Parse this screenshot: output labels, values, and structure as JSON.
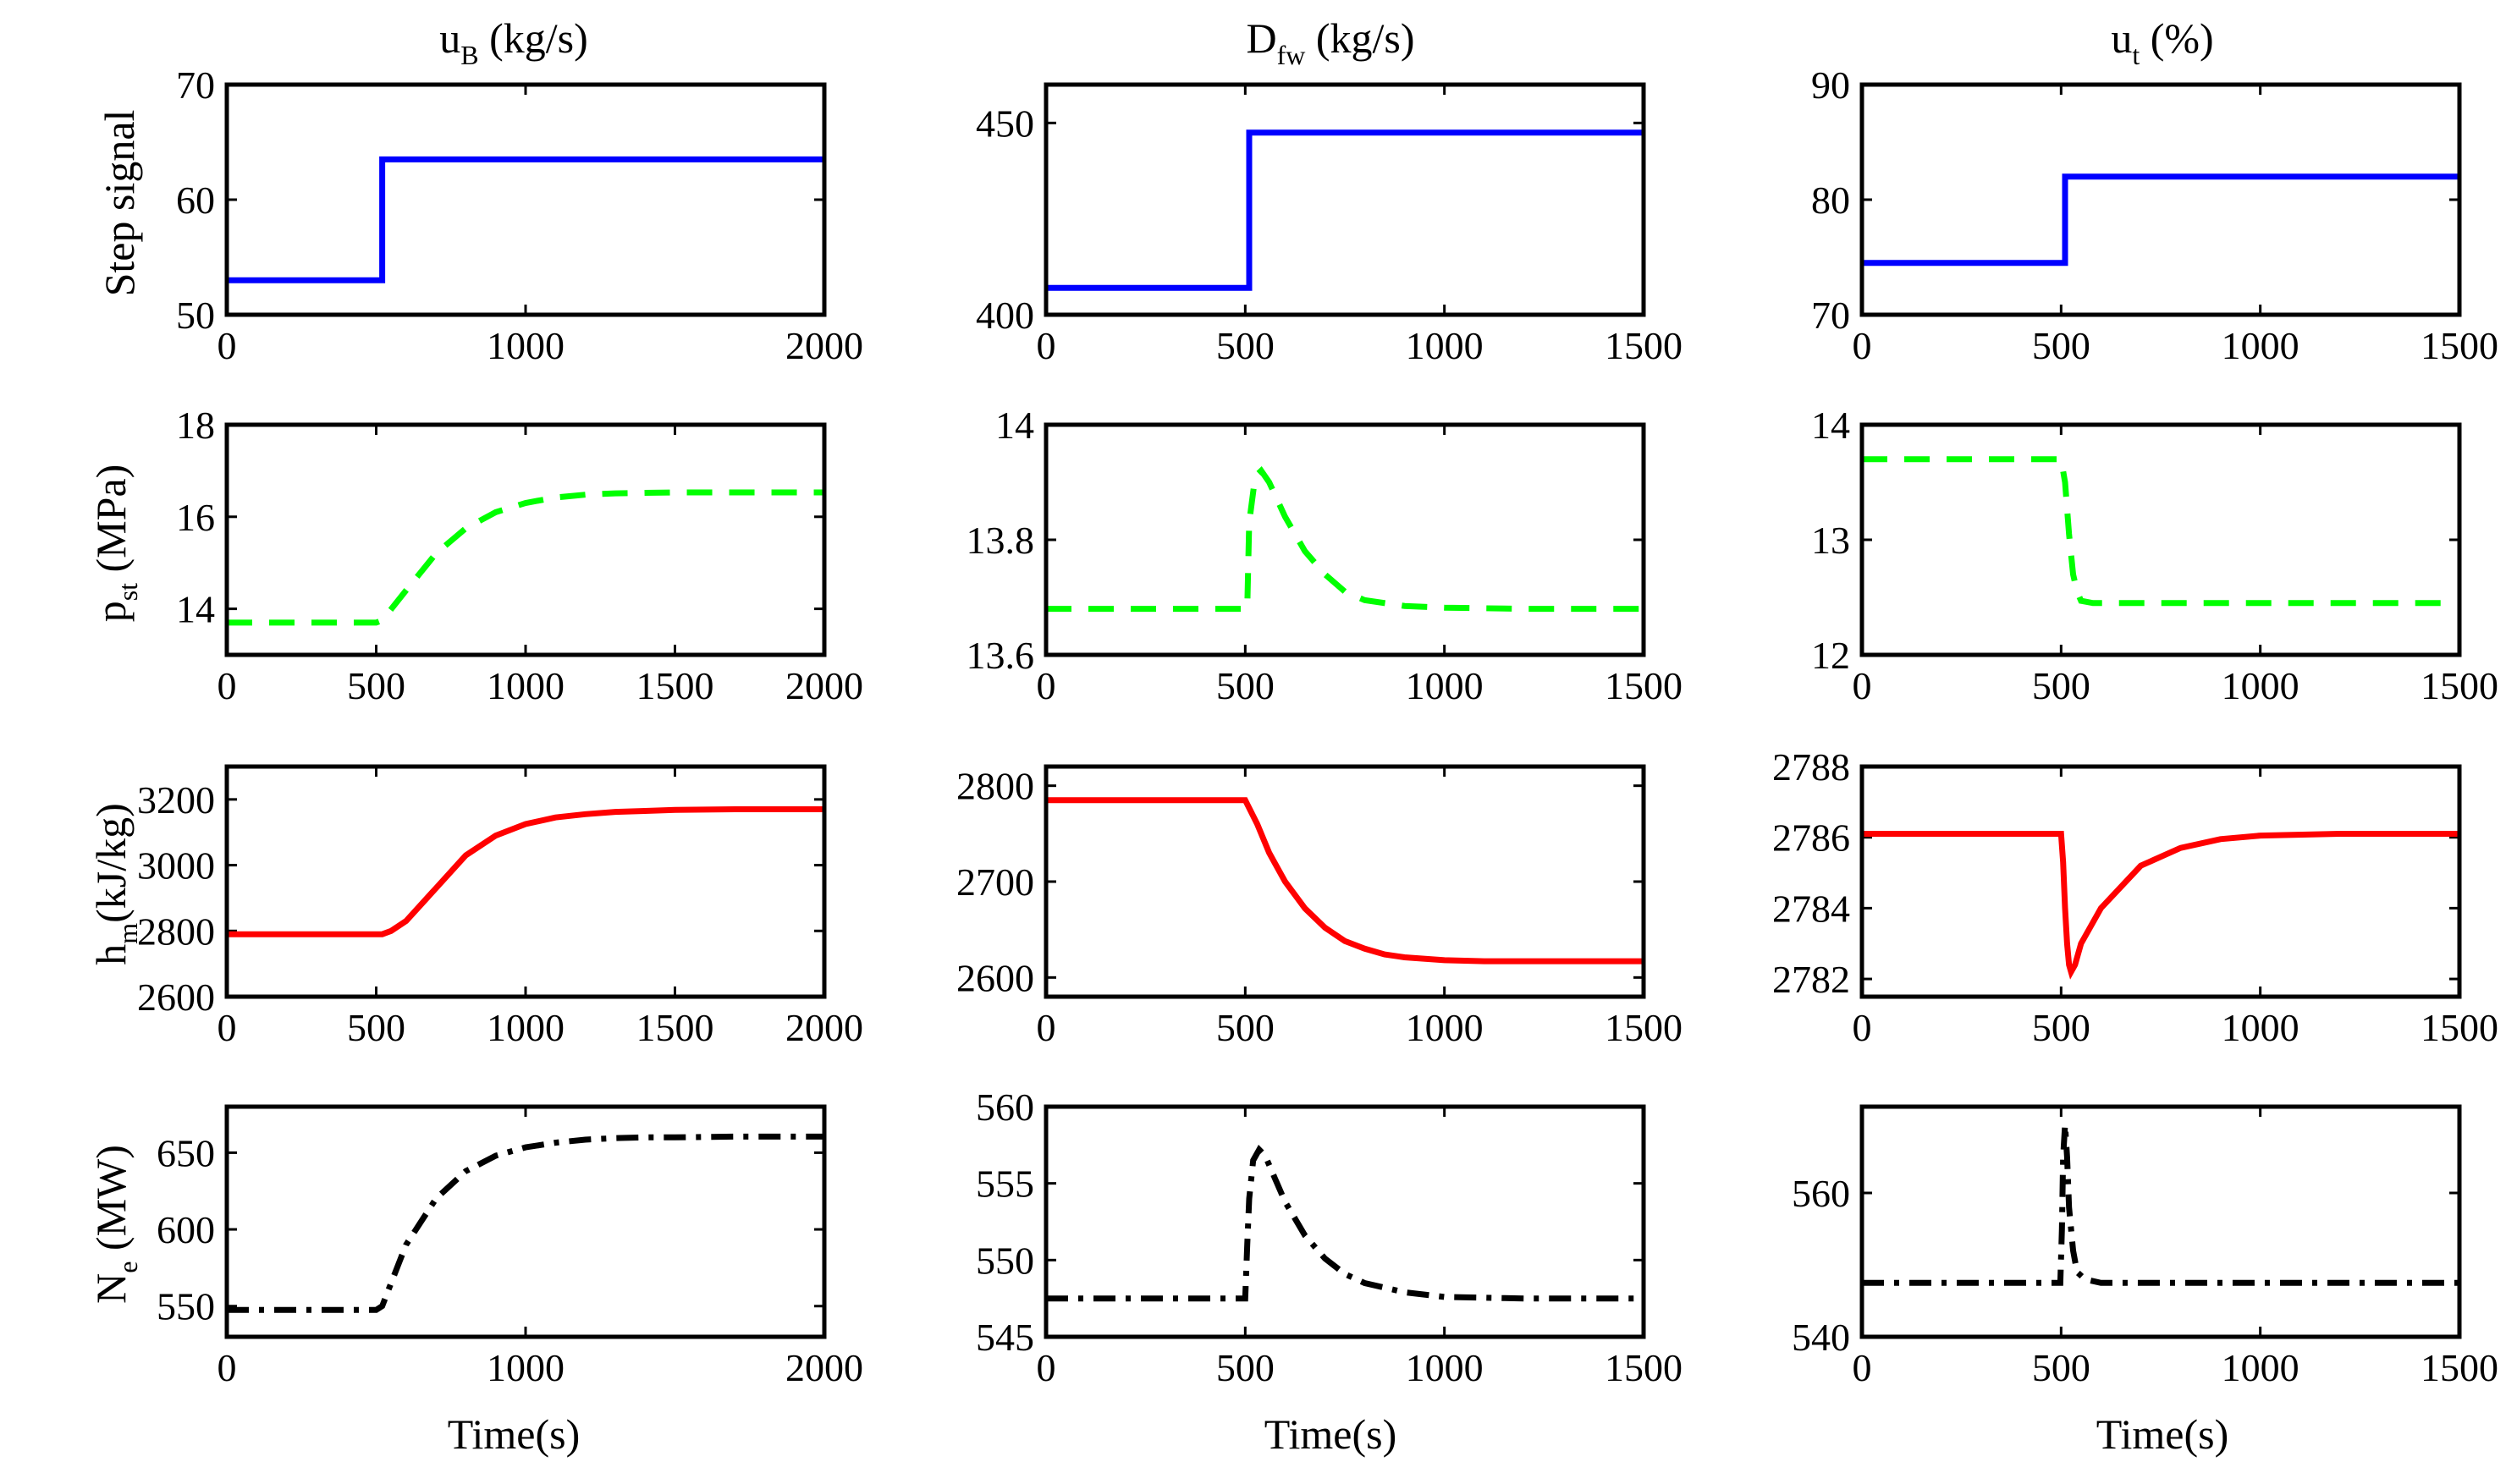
{
  "columns": [
    {
      "main": "u",
      "sub": "B",
      "unit": " (kg/s)"
    },
    {
      "main": "D",
      "sub": "fw",
      "unit": " (kg/s)"
    },
    {
      "main": "u",
      "sub": "t",
      "unit": " (%)"
    }
  ],
  "rows": [
    {
      "plain": "Step signal"
    },
    {
      "main": "p",
      "sub": "st",
      "unit": " (MPa)"
    },
    {
      "main": "h",
      "sub": "m",
      "unit": "(kJ/kg)"
    },
    {
      "main": "N",
      "sub": "e",
      "unit": " (MW)"
    }
  ],
  "xlabel": "Time(s)",
  "colors": {
    "step": "#0000ff",
    "pressure": "#00ff00",
    "enthalpy": "#ff0000",
    "power": "#000000"
  },
  "chart_data": [
    {
      "id": "r0c0",
      "type": "line",
      "style": "solid",
      "color": "#0000ff",
      "xlim": [
        0,
        2000
      ],
      "ylim": [
        50,
        70
      ],
      "xticks": [
        0,
        1000,
        2000
      ],
      "yticks": [
        50,
        60,
        70
      ],
      "x": [
        0,
        520,
        520,
        2000
      ],
      "y": [
        53,
        53,
        63.5,
        63.5
      ]
    },
    {
      "id": "r0c1",
      "type": "line",
      "style": "solid",
      "color": "#0000ff",
      "xlim": [
        0,
        1500
      ],
      "ylim": [
        400,
        460
      ],
      "xticks": [
        0,
        500,
        1000,
        1500
      ],
      "yticks": [
        400,
        450
      ],
      "x": [
        0,
        510,
        510,
        1500
      ],
      "y": [
        407,
        407,
        447.5,
        447.5
      ]
    },
    {
      "id": "r0c2",
      "type": "line",
      "style": "solid",
      "color": "#0000ff",
      "xlim": [
        0,
        1500
      ],
      "ylim": [
        70,
        90
      ],
      "xticks": [
        0,
        500,
        1000,
        1500
      ],
      "yticks": [
        70,
        80,
        90
      ],
      "x": [
        0,
        510,
        510,
        1500
      ],
      "y": [
        74.5,
        74.5,
        82,
        82
      ]
    },
    {
      "id": "r1c0",
      "type": "line",
      "style": "dashed",
      "color": "#00ff00",
      "xlim": [
        0,
        2000
      ],
      "ylim": [
        13,
        18
      ],
      "xticks": [
        0,
        500,
        1000,
        1500,
        2000
      ],
      "yticks": [
        14,
        16,
        18
      ],
      "x": [
        0,
        250,
        500,
        520,
        600,
        700,
        800,
        900,
        1000,
        1100,
        1200,
        1300,
        1400,
        1500,
        1700,
        2000
      ],
      "y": [
        13.7,
        13.7,
        13.7,
        13.75,
        14.4,
        15.2,
        15.75,
        16.1,
        16.3,
        16.42,
        16.48,
        16.51,
        16.52,
        16.53,
        16.53,
        16.53
      ]
    },
    {
      "id": "r1c1",
      "type": "line",
      "style": "dashed",
      "color": "#00ff00",
      "xlim": [
        0,
        1500
      ],
      "ylim": [
        13.6,
        14
      ],
      "xticks": [
        0,
        500,
        1000,
        1500
      ],
      "yticks": [
        13.6,
        13.8,
        14
      ],
      "x": [
        0,
        250,
        505,
        510,
        525,
        540,
        560,
        600,
        650,
        700,
        750,
        800,
        900,
        1000,
        1200,
        1500
      ],
      "y": [
        13.68,
        13.68,
        13.68,
        13.83,
        13.91,
        13.92,
        13.9,
        13.84,
        13.78,
        13.74,
        13.71,
        13.695,
        13.685,
        13.682,
        13.68,
        13.68
      ]
    },
    {
      "id": "r1c2",
      "type": "line",
      "style": "dashed",
      "color": "#00ff00",
      "xlim": [
        0,
        1500
      ],
      "ylim": [
        12,
        14
      ],
      "xticks": [
        0,
        500,
        1000,
        1500
      ],
      "yticks": [
        12,
        13,
        14
      ],
      "x": [
        0,
        250,
        500,
        510,
        520,
        530,
        540,
        550,
        580,
        700,
        1000,
        1500
      ],
      "y": [
        13.7,
        13.7,
        13.7,
        13.5,
        13.05,
        12.7,
        12.55,
        12.47,
        12.45,
        12.45,
        12.45,
        12.45
      ]
    },
    {
      "id": "r2c0",
      "type": "line",
      "style": "solid",
      "color": "#ff0000",
      "xlim": [
        0,
        2000
      ],
      "ylim": [
        2600,
        3300
      ],
      "xticks": [
        0,
        500,
        1000,
        1500,
        2000
      ],
      "yticks": [
        2600,
        2800,
        3000,
        3200
      ],
      "x": [
        0,
        250,
        520,
        550,
        600,
        700,
        800,
        900,
        1000,
        1100,
        1200,
        1300,
        1400,
        1500,
        1700,
        2000
      ],
      "y": [
        2790,
        2790,
        2790,
        2800,
        2830,
        2930,
        3030,
        3090,
        3125,
        3145,
        3155,
        3162,
        3165,
        3168,
        3170,
        3170
      ]
    },
    {
      "id": "r2c1",
      "type": "line",
      "style": "solid",
      "color": "#ff0000",
      "xlim": [
        0,
        1500
      ],
      "ylim": [
        2580,
        2820
      ],
      "xticks": [
        0,
        500,
        1000,
        1500
      ],
      "yticks": [
        2600,
        2700,
        2800
      ],
      "x": [
        0,
        250,
        500,
        530,
        560,
        600,
        650,
        700,
        750,
        800,
        850,
        900,
        1000,
        1100,
        1200,
        1500
      ],
      "y": [
        2785,
        2785,
        2785,
        2760,
        2730,
        2700,
        2672,
        2652,
        2638,
        2630,
        2624,
        2621,
        2618,
        2617,
        2617,
        2617
      ]
    },
    {
      "id": "r2c2",
      "type": "line",
      "style": "solid",
      "color": "#ff0000",
      "xlim": [
        0,
        1500
      ],
      "ylim": [
        2781.5,
        2788
      ],
      "xticks": [
        0,
        500,
        1000,
        1500
      ],
      "yticks": [
        2782,
        2784,
        2786,
        2788
      ],
      "x": [
        0,
        250,
        500,
        505,
        510,
        515,
        520,
        525,
        535,
        550,
        600,
        700,
        800,
        900,
        1000,
        1200,
        1500
      ],
      "y": [
        2786.1,
        2786.1,
        2786.1,
        2785.3,
        2784,
        2783,
        2782.4,
        2782.2,
        2782.4,
        2783,
        2784,
        2785.2,
        2785.7,
        2785.95,
        2786.05,
        2786.1,
        2786.1
      ]
    },
    {
      "id": "r3c0",
      "type": "line",
      "style": "dashdot",
      "color": "#000000",
      "xlim": [
        0,
        2000
      ],
      "ylim": [
        530,
        680
      ],
      "xticks": [
        0,
        1000,
        2000
      ],
      "yticks": [
        550,
        600,
        650
      ],
      "x": [
        0,
        250,
        500,
        520,
        550,
        600,
        700,
        800,
        900,
        1000,
        1100,
        1200,
        1300,
        1400,
        1500,
        1700,
        2000
      ],
      "y": [
        547.5,
        547.5,
        547.5,
        550,
        565,
        590,
        620,
        638,
        648,
        653.5,
        656.5,
        658.5,
        659.5,
        660,
        660,
        660.5,
        660.5
      ]
    },
    {
      "id": "r3c1",
      "type": "line",
      "style": "dashdot",
      "color": "#000000",
      "xlim": [
        0,
        1500
      ],
      "ylim": [
        545,
        560
      ],
      "xticks": [
        0,
        500,
        1000,
        1500
      ],
      "yticks": [
        545,
        550,
        555,
        560
      ],
      "x": [
        0,
        250,
        500,
        505,
        510,
        520,
        535,
        550,
        575,
        600,
        650,
        700,
        750,
        800,
        900,
        1000,
        1200,
        1500
      ],
      "y": [
        547.5,
        547.5,
        547.5,
        551,
        554,
        556.5,
        557.2,
        556.8,
        555.3,
        553.8,
        551.6,
        550.1,
        549.1,
        548.5,
        547.9,
        547.6,
        547.5,
        547.5
      ]
    },
    {
      "id": "r3c2",
      "type": "line",
      "style": "dashdot",
      "color": "#000000",
      "xlim": [
        0,
        1500
      ],
      "ylim": [
        540,
        572
      ],
      "xticks": [
        0,
        500,
        1000,
        1500
      ],
      "yticks": [
        540,
        560
      ],
      "x": [
        0,
        250,
        498,
        502,
        505,
        510,
        515,
        520,
        530,
        540,
        560,
        600,
        800,
        1000,
        1500
      ],
      "y": [
        547.5,
        547.5,
        547.5,
        555,
        565,
        569.5,
        565,
        558,
        552,
        549,
        548,
        547.5,
        547.5,
        547.5,
        547.5
      ]
    }
  ]
}
